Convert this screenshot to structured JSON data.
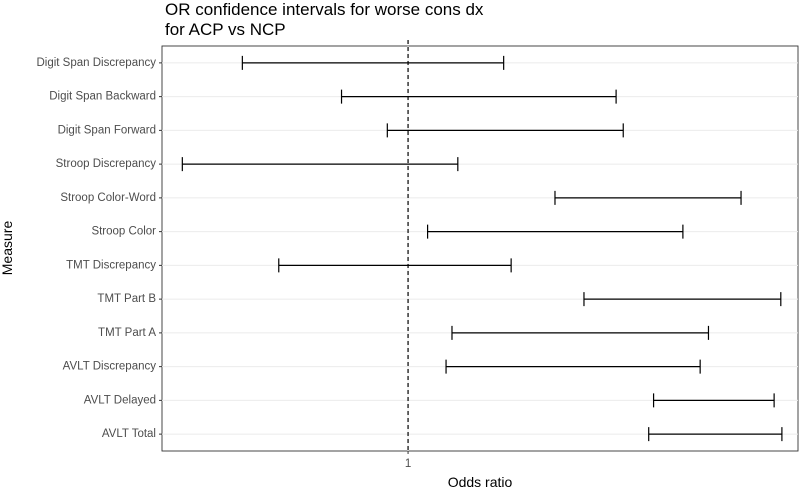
{
  "chart_data": {
    "type": "errorbar",
    "title_lines": [
      "OR confidence intervals for worse cons dx",
      "for ACP vs NCP"
    ],
    "xlabel": "Odds ratio",
    "ylabel": "Measure",
    "x_tick_labels": [
      "1"
    ],
    "x_ticks": [
      1
    ],
    "xlim": [
      0.48,
      3.2
    ],
    "log_scale_x": true,
    "reference_line": 1,
    "grid": true,
    "categories": [
      "Digit Span Discrepancy",
      "Digit Span Backward",
      "Digit Span Forward",
      "Stroop Discrepancy",
      "Stroop Color-Word",
      "Stroop Color",
      "TMT Discrepancy",
      "TMT Part B",
      "TMT Part A",
      "AVLT Discrepancy",
      "AVLT Delayed",
      "AVLT Total"
    ],
    "series": [
      {
        "lower": [
          0.61,
          0.82,
          0.94,
          0.51,
          1.55,
          1.06,
          0.68,
          1.69,
          1.14,
          1.12,
          2.08,
          2.05
        ],
        "upper": [
          1.33,
          1.86,
          1.9,
          1.16,
          2.7,
          2.27,
          1.36,
          3.04,
          2.45,
          2.39,
          2.98,
          3.05
        ]
      }
    ]
  }
}
